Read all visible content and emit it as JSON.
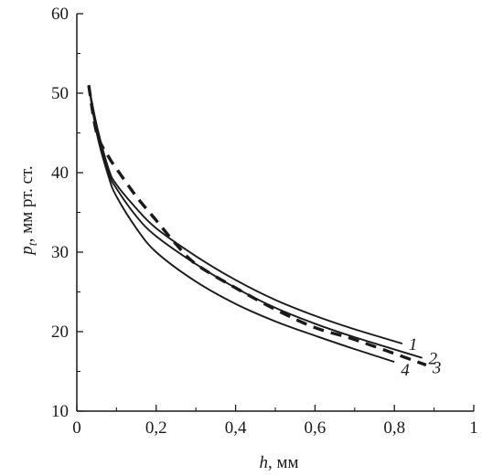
{
  "chart_data": {
    "type": "line",
    "title": "",
    "xlabel_symbol": "h",
    "xlabel_unit": ", мм",
    "ylabel_symbol": "p",
    "ylabel_subscript": "t",
    "ylabel_unit": ", мм рт. ст.",
    "xlim": [
      0,
      1
    ],
    "ylim": [
      10,
      60
    ],
    "xticks": [
      0,
      0.2,
      0.4,
      0.6,
      0.8,
      1
    ],
    "xtick_labels": [
      "0",
      "0,2",
      "0,4",
      "0,6",
      "0,8",
      "1"
    ],
    "yticks": [
      10,
      20,
      30,
      40,
      50,
      60
    ],
    "ytick_labels": [
      "10",
      "20",
      "30",
      "40",
      "50",
      "60"
    ],
    "grid": false,
    "legend": "inline-right",
    "line_color": "#1a1a1a",
    "series": [
      {
        "name": "1",
        "style": "solid",
        "x": [
          0.03,
          0.05,
          0.08,
          0.1,
          0.15,
          0.2,
          0.3,
          0.4,
          0.5,
          0.6,
          0.7,
          0.82
        ],
        "y": [
          51,
          46,
          40.5,
          38.5,
          35.5,
          33,
          29.5,
          26.5,
          24,
          22,
          20.3,
          18.5
        ]
      },
      {
        "name": "2",
        "style": "solid",
        "x": [
          0.03,
          0.05,
          0.08,
          0.1,
          0.15,
          0.2,
          0.3,
          0.4,
          0.5,
          0.6,
          0.7,
          0.87
        ],
        "y": [
          51,
          45.5,
          40,
          38,
          34.5,
          32,
          28.5,
          25.5,
          23,
          21,
          19.3,
          16.7
        ]
      },
      {
        "name": "3",
        "style": "dashed",
        "x": [
          0.03,
          0.05,
          0.08,
          0.1,
          0.15,
          0.2,
          0.25,
          0.3,
          0.4,
          0.5,
          0.6,
          0.7,
          0.88
        ],
        "y": [
          51,
          45,
          42,
          40.5,
          37,
          34,
          31,
          28.5,
          25.5,
          22.8,
          20.5,
          19,
          15.8
        ]
      },
      {
        "name": "4",
        "style": "solid",
        "x": [
          0.03,
          0.05,
          0.08,
          0.1,
          0.15,
          0.2,
          0.3,
          0.4,
          0.5,
          0.6,
          0.7,
          0.8
        ],
        "y": [
          51,
          45,
          39.5,
          37,
          33,
          30,
          26.3,
          23.5,
          21.3,
          19.5,
          17.8,
          16.2
        ]
      }
    ]
  }
}
